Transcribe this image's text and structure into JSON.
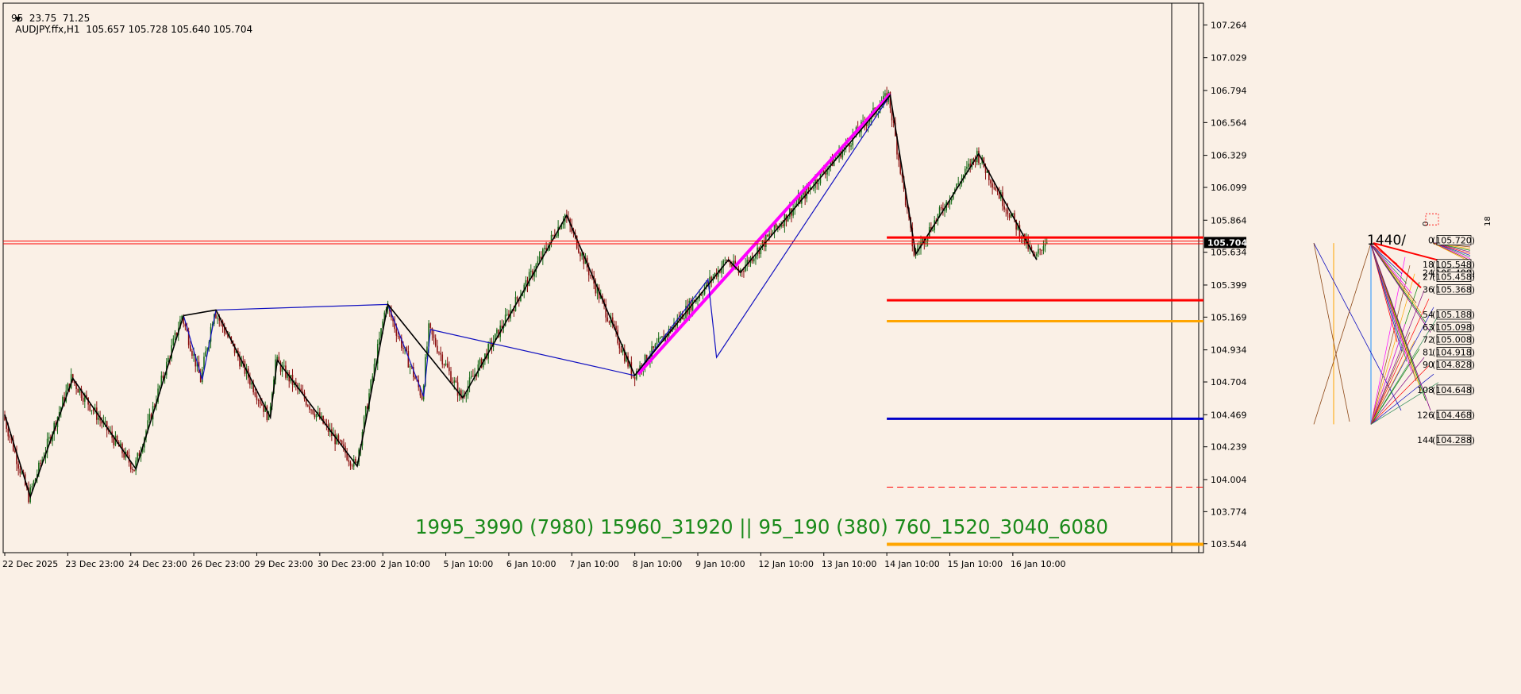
{
  "colors": {
    "background": "#faf0e6",
    "bull": "#1a6b1a",
    "bear": "#8b1010",
    "zigzag": "#000000",
    "zigzag_minor": "#1010c0",
    "channel": "#ff00ff",
    "level_red": "#ff0000",
    "level_orange": "#ffa500",
    "level_blue": "#0000c8",
    "watermark": "#1a8a1a"
  },
  "header": {
    "symbol_line": "AUDJPY.ffx,H1  105.657 105.728 105.640 105.704",
    "indicator_line": "95  23.75  71.25"
  },
  "watermark": "1995_3990 (7980) 15960_31920 || 95_190 (380) 760_1520_3040_6080",
  "side_label": "1440/",
  "chart_data": {
    "type": "candlestick",
    "symbol": "AUDJPY.ffx",
    "timeframe": "H1",
    "ohlc_last": {
      "open": 105.657,
      "high": 105.728,
      "low": 105.64,
      "close": 105.704
    },
    "current_price": "105.704",
    "ylim": [
      103.48,
      107.42
    ],
    "y_ticks": [
      {
        "v": 107.264,
        "label": "107.264"
      },
      {
        "v": 107.029,
        "label": "107.029"
      },
      {
        "v": 106.794,
        "label": "106.794"
      },
      {
        "v": 106.564,
        "label": "106.564"
      },
      {
        "v": 106.329,
        "label": "106.329"
      },
      {
        "v": 106.099,
        "label": "106.099"
      },
      {
        "v": 105.864,
        "label": "105.864"
      },
      {
        "v": 105.634,
        "label": "105.634"
      },
      {
        "v": 105.399,
        "label": "105.399"
      },
      {
        "v": 105.169,
        "label": "105.169"
      },
      {
        "v": 104.934,
        "label": "104.934"
      },
      {
        "v": 104.704,
        "label": "104.704"
      },
      {
        "v": 104.469,
        "label": "104.469"
      },
      {
        "v": 104.239,
        "label": "104.239"
      },
      {
        "v": 104.004,
        "label": "104.004"
      },
      {
        "v": 103.774,
        "label": "103.774"
      },
      {
        "v": 103.544,
        "label": "103.544"
      }
    ],
    "x_ticks": [
      {
        "label": "22 Dec 2025",
        "i": 0
      },
      {
        "label": "23 Dec 23:00",
        "i": 37
      },
      {
        "label": "24 Dec 23:00",
        "i": 74
      },
      {
        "label": "26 Dec 23:00",
        "i": 111
      },
      {
        "label": "29 Dec 23:00",
        "i": 148
      },
      {
        "label": "30 Dec 23:00",
        "i": 185
      },
      {
        "label": "2 Jan 10:00",
        "i": 222
      },
      {
        "label": "5 Jan 10:00",
        "i": 259
      },
      {
        "label": "6 Jan 10:00",
        "i": 296
      },
      {
        "label": "7 Jan 10:00",
        "i": 333
      },
      {
        "label": "8 Jan 10:00",
        "i": 370
      },
      {
        "label": "9 Jan 10:00",
        "i": 407
      },
      {
        "label": "12 Jan 10:00",
        "i": 444
      },
      {
        "label": "13 Jan 10:00",
        "i": 481
      },
      {
        "label": "14 Jan 10:00",
        "i": 518
      },
      {
        "label": "15 Jan 10:00",
        "i": 555
      },
      {
        "label": "16 Jan 10:00",
        "i": 592
      }
    ],
    "pivots": [
      [
        0,
        104.47
      ],
      [
        15,
        103.88
      ],
      [
        40,
        104.73
      ],
      [
        77,
        104.08
      ],
      [
        105,
        105.18
      ],
      [
        116,
        104.72
      ],
      [
        124,
        105.22
      ],
      [
        156,
        104.45
      ],
      [
        160,
        104.86
      ],
      [
        207,
        104.1
      ],
      [
        225,
        105.26
      ],
      [
        246,
        104.6
      ],
      [
        250,
        105.08
      ],
      [
        269,
        104.59
      ],
      [
        330,
        105.9
      ],
      [
        370,
        104.75
      ],
      [
        425,
        105.58
      ],
      [
        432,
        105.49
      ],
      [
        520,
        106.76
      ],
      [
        535,
        105.62
      ],
      [
        572,
        106.34
      ],
      [
        606,
        105.58
      ],
      [
        612,
        105.72
      ]
    ],
    "zigzag_major": [
      [
        0,
        104.47
      ],
      [
        15,
        103.88
      ],
      [
        40,
        104.73
      ],
      [
        77,
        104.08
      ],
      [
        105,
        105.18
      ],
      [
        124,
        105.22
      ],
      [
        156,
        104.45
      ],
      [
        160,
        104.86
      ],
      [
        207,
        104.1
      ],
      [
        225,
        105.26
      ],
      [
        269,
        104.59
      ],
      [
        330,
        105.9
      ],
      [
        370,
        104.75
      ],
      [
        425,
        105.58
      ],
      [
        432,
        105.49
      ],
      [
        520,
        106.76
      ],
      [
        535,
        105.62
      ],
      [
        572,
        106.34
      ],
      [
        606,
        105.58
      ]
    ],
    "zigzag_minor": [
      [
        105,
        105.18
      ],
      [
        116,
        104.72
      ],
      [
        124,
        105.22
      ],
      [
        225,
        105.26
      ],
      [
        246,
        104.6
      ],
      [
        250,
        105.08
      ],
      [
        370,
        104.75
      ],
      [
        413,
        105.44
      ],
      [
        418,
        104.88
      ],
      [
        520,
        106.76
      ]
    ],
    "channel_line": [
      [
        372,
        104.76
      ],
      [
        520,
        106.77
      ]
    ],
    "levels": [
      {
        "price": 105.74,
        "color": "#ff0000",
        "width": 3,
        "dash": "",
        "from_i": 518
      },
      {
        "price": 105.29,
        "color": "#ff0000",
        "width": 3,
        "dash": "",
        "from_i": 518
      },
      {
        "price": 105.14,
        "color": "#ffa500",
        "width": 3,
        "dash": "",
        "from_i": 518
      },
      {
        "price": 104.44,
        "color": "#0000c8",
        "width": 3,
        "dash": "",
        "from_i": 518
      },
      {
        "price": 103.95,
        "color": "#ff0000",
        "width": 1,
        "dash": "8,5",
        "from_i": 518
      },
      {
        "price": 103.54,
        "color": "#ffa500",
        "width": 4,
        "dash": "",
        "from_i": 518
      }
    ],
    "hlines_full": [
      {
        "price": 105.714,
        "color": "#ff0000"
      },
      {
        "price": 105.695,
        "color": "#ff0000"
      }
    ],
    "fan_labels": [
      {
        "n": "18",
        "p": "105.548"
      },
      {
        "n": "24",
        "p": "105.488"
      },
      {
        "n": "27",
        "p": "105.458"
      },
      {
        "n": "36",
        "p": "105.368"
      },
      {
        "n": "54",
        "p": "105.188"
      },
      {
        "n": "63",
        "p": "105.098"
      },
      {
        "n": "72",
        "p": "105.008"
      },
      {
        "n": "81",
        "p": "104.918"
      },
      {
        "n": "90",
        "p": "104.828"
      },
      {
        "n": "108",
        "p": "104.648"
      },
      {
        "n": "126",
        "p": "104.468"
      },
      {
        "n": "144",
        "p": "104.288"
      }
    ],
    "fan_top_label": {
      "n": "0",
      "p": "105.720"
    },
    "marker_labels": [
      "0",
      "18"
    ]
  }
}
